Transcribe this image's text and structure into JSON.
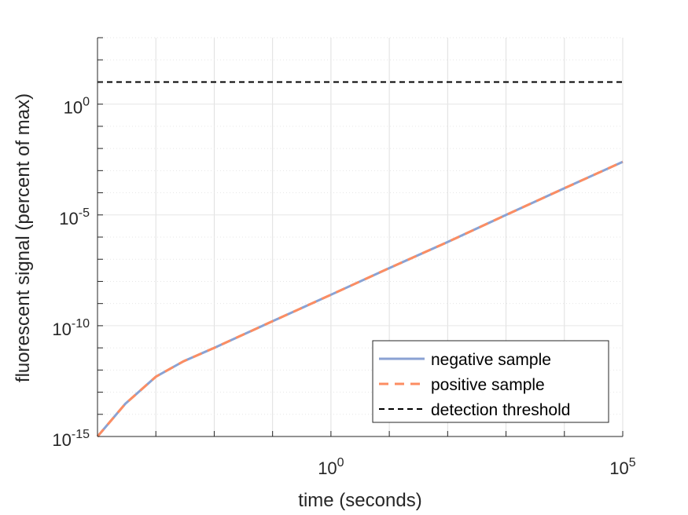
{
  "chart_data": {
    "type": "line",
    "title": "",
    "xlabel": "time (seconds)",
    "ylabel": "fluorescent signal (percent of max)",
    "x_scale": "log",
    "y_scale": "log",
    "xlim": [
      0.0001,
      100000
    ],
    "ylim": [
      1e-15,
      1000
    ],
    "x_ticks": [
      {
        "value": 1,
        "base": "10",
        "exp": "0"
      },
      {
        "value": 100000,
        "base": "10",
        "exp": "5"
      }
    ],
    "y_ticks": [
      {
        "value": 1,
        "base": "10",
        "exp": "0"
      },
      {
        "value": 1e-05,
        "base": "10",
        "exp": "-5"
      },
      {
        "value": 1e-10,
        "base": "10",
        "exp": "-10"
      },
      {
        "value": 1e-15,
        "base": "10",
        "exp": "-15"
      }
    ],
    "grid": true,
    "legend_position": "bottom-right",
    "series": [
      {
        "name": "negative sample",
        "color": "#8aa2d3",
        "style": "solid",
        "x": [
          0.0001,
          0.0003,
          0.001,
          0.003,
          0.01,
          0.1,
          1,
          10,
          100,
          1000,
          10000,
          100000
        ],
        "y": [
          1e-15,
          3e-14,
          5e-13,
          2.5e-12,
          1e-11,
          1.6e-10,
          2.5e-09,
          4e-08,
          6e-07,
          1e-05,
          0.00016,
          0.0025
        ]
      },
      {
        "name": "positive sample",
        "color": "#fc8d62",
        "style": "dashed",
        "x": [
          0.0001,
          0.0003,
          0.001,
          0.003,
          0.01,
          0.1,
          1,
          10,
          100,
          1000,
          10000,
          100000
        ],
        "y": [
          1e-15,
          3e-14,
          5e-13,
          2.5e-12,
          1e-11,
          1.6e-10,
          2.5e-09,
          4e-08,
          6e-07,
          1e-05,
          0.00016,
          0.0025
        ]
      },
      {
        "name": "detection threshold",
        "color": "#000000",
        "style": "dashed",
        "x": [
          0.0001,
          100000
        ],
        "y": [
          10,
          10
        ]
      }
    ]
  }
}
